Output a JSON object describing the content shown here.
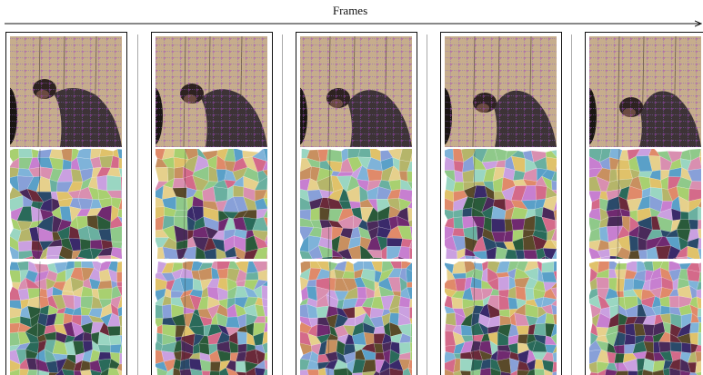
{
  "figure": {
    "axis_label": "Frames"
  }
}
